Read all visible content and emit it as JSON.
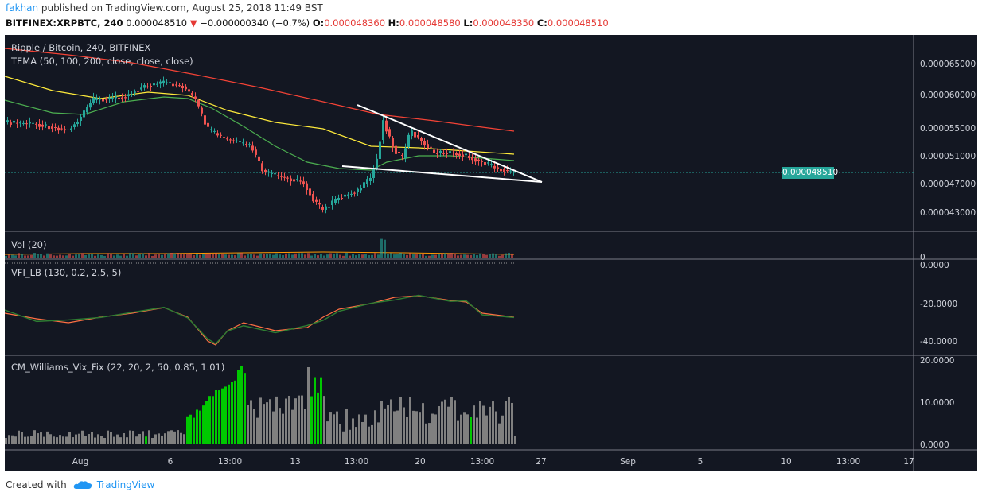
{
  "header": {
    "user": "fakhan",
    "published_text": "published on TradingView.com, August 25, 2018 11:49 BST",
    "symbol": "BITFINEX:XRPBTC, 240",
    "last": "0.000048510",
    "change": "−0.000000340 (−0.7%)",
    "o_label": "O:",
    "o": "0.000048360",
    "h_label": "H:",
    "h": "0.000048580",
    "l_label": "L:",
    "l": "0.000048350",
    "c_label": "C:",
    "c": "0.000048510"
  },
  "main_pane": {
    "title": "Ripple / Bitcoin, 240, BITFINEX",
    "indicator": "TEMA (50, 100, 200, close, close, close)",
    "price_ticks": [
      "0.000065000",
      "0.000060000",
      "0.000055000",
      "0.000051000",
      "0.000047000",
      "0.000043000"
    ],
    "price_tag": "0.000048510"
  },
  "vol_pane": {
    "title": "Vol (20)",
    "tick": "0"
  },
  "vfi_pane": {
    "title": "VFI_LB (130, 0.2, 2.5, 5)",
    "ticks": [
      "0.0000",
      "-20.0000",
      "-40.0000"
    ]
  },
  "vix_pane": {
    "title": "CM_Williams_Vix_Fix (22, 20, 2, 50, 0.85, 1.01)",
    "ticks": [
      "20.0000",
      "10.0000",
      "0.0000"
    ]
  },
  "time_axis": [
    "Aug",
    "6",
    "13:00",
    "13",
    "13:00",
    "20",
    "13:00",
    "27",
    "Sep",
    "5",
    "10",
    "13:00",
    "17"
  ],
  "footer": {
    "created": "Created with",
    "brand": "TradingView"
  },
  "colors": {
    "background": "#131722",
    "up": "#26a69a",
    "down": "#ef5350",
    "tema50": "#4caf50",
    "tema100": "#ffeb3b",
    "tema200": "#f44336",
    "vix_high": "#00c800",
    "vix_low": "#808080"
  }
}
